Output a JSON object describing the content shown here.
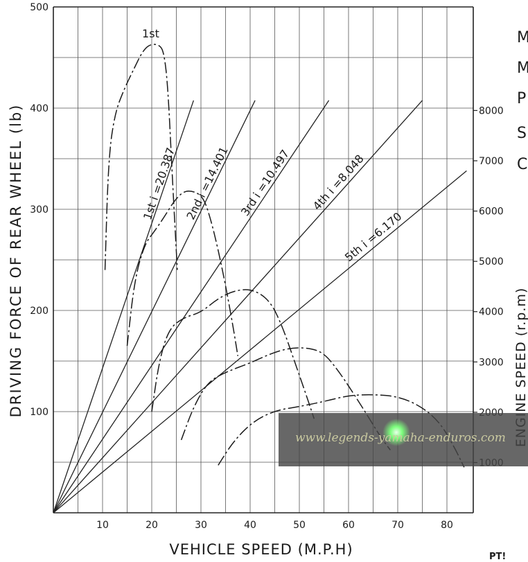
{
  "chart_data": {
    "type": "line",
    "xlabel": "VEHICLE SPEED (M.P.H)",
    "ylabel": "DRIVING FORCE OF REAR WHEEL (lb)",
    "y2label": "ENGINE  SPEED (r.p.m)",
    "xlim": [
      0,
      84
    ],
    "ylim": [
      0,
      500
    ],
    "y2lim": [
      0,
      8700
    ],
    "xticks": [
      10,
      20,
      30,
      40,
      50,
      60,
      70,
      80
    ],
    "yticks": [
      100,
      200,
      300,
      400,
      500
    ],
    "y2ticks": [
      1000,
      2000,
      3000,
      4000,
      5000,
      6000,
      7000,
      8000
    ],
    "grid": true,
    "gear_lines": [
      {
        "label": "1st  i =20.387",
        "end": [
          28.5,
          8200
        ]
      },
      {
        "label": "2nd  i =14.401",
        "end": [
          41,
          8200
        ]
      },
      {
        "label": "3rd  i =10.497",
        "end": [
          56,
          8200
        ]
      },
      {
        "label": "4th  i =8.048",
        "end": [
          75,
          8200
        ]
      },
      {
        "label": "5th  i =6.170",
        "end": [
          84,
          6800
        ]
      }
    ],
    "force_curves": [
      {
        "label": "1st",
        "x": [
          10.5,
          11.2,
          12.5,
          14.5,
          16.5,
          18,
          19.5,
          21.5,
          22.5,
          23.3,
          24.2,
          25.2
        ],
        "y": [
          240,
          350,
          395,
          420,
          440,
          455,
          463,
          463,
          455,
          420,
          330,
          240
        ]
      },
      {
        "label": "",
        "x": [
          15,
          16.5,
          18.5,
          20.5,
          22.5,
          24.5,
          26.5,
          28.5,
          30.5,
          32,
          33.5,
          35,
          36.5,
          37.5
        ],
        "y": [
          165,
          230,
          265,
          278,
          292,
          308,
          318,
          318,
          312,
          290,
          260,
          225,
          185,
          155
        ]
      },
      {
        "label": "",
        "x": [
          20,
          21.5,
          23.5,
          26.5,
          30,
          33.5,
          37,
          40.5,
          44,
          46.5,
          49,
          51.5,
          53
        ],
        "y": [
          100,
          150,
          182,
          193,
          198,
          212,
          220,
          221,
          210,
          185,
          150,
          115,
          93
        ]
      },
      {
        "label": "",
        "x": [
          26,
          28.5,
          31.5,
          35.5,
          40,
          44,
          48,
          52,
          55,
          58,
          61,
          64,
          66.5,
          68.5
        ],
        "y": [
          72,
          105,
          130,
          140,
          148,
          157,
          163,
          163,
          158,
          140,
          118,
          95,
          75,
          62
        ]
      },
      {
        "label": "",
        "x": [
          33.5,
          36.5,
          40.5,
          45,
          50,
          55,
          60,
          65,
          70,
          74.5,
          78.5,
          81.5,
          83.5
        ],
        "y": [
          47,
          70,
          90,
          101,
          105,
          110,
          116,
          117,
          115,
          106,
          90,
          65,
          45
        ]
      }
    ]
  },
  "side_letters": [
    "M",
    "M",
    "P",
    "S",
    "C"
  ],
  "corner_text": "PT!",
  "watermark": {
    "text": "www.legends-yamaha-enduros.com"
  }
}
